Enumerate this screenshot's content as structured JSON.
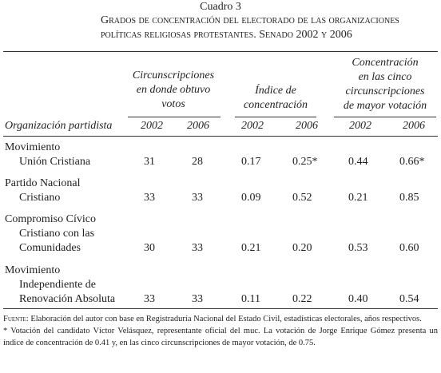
{
  "header": {
    "label": "Cuadro 3",
    "title_lines": [
      "Grados de concentración del electorado de las organizaciones",
      "políticas religiosas protestantes. Senado 2002 y 2006"
    ]
  },
  "table": {
    "column_groups": [
      {
        "label_lines": [
          "Circunscripciones",
          "en donde obtuvo",
          "votos"
        ]
      },
      {
        "label_lines": [
          "Índice de",
          "concentración"
        ]
      },
      {
        "label_lines": [
          "Concentración",
          "en las cinco",
          "circunscripciones",
          "de mayor votación"
        ]
      }
    ],
    "columns": [
      "Organización partidista",
      "2002",
      "2006",
      "2002",
      "2006",
      "2002",
      "2006"
    ],
    "rows": [
      {
        "name_lines": [
          "Movimiento",
          "Unión Cristiana"
        ],
        "values": [
          "31",
          "28",
          "0.17",
          "0.25*",
          "0.44",
          "0.66*"
        ]
      },
      {
        "name_lines": [
          "Partido Nacional",
          "Cristiano"
        ],
        "values": [
          "33",
          "33",
          "0.09",
          "0.52",
          "0.21",
          "0.85"
        ]
      },
      {
        "name_lines": [
          "Compromiso Cívico",
          "Cristiano con las",
          "Comunidades"
        ],
        "values": [
          "30",
          "33",
          "0.21",
          "0.20",
          "0.53",
          "0.60"
        ]
      },
      {
        "name_lines": [
          "Movimiento",
          "Independiente de",
          "Renovación Absoluta"
        ],
        "values": [
          "33",
          "33",
          "0.11",
          "0.22",
          "0.40",
          "0.54"
        ]
      }
    ]
  },
  "notes": {
    "source_label": "Fuente:",
    "source": "Elaboración del autor con base en Registraduría Nacional del Estado Civil, estadísticas electorales, años respectivos.",
    "footnote": "* Votación del candidato Víctor Velásquez, representante oficial del muc. La votación de Jorge Enrique Gómez presenta un índice de concentración de 0.41 y, en las cinco circunscripciones de mayor votación, de 0.75."
  }
}
